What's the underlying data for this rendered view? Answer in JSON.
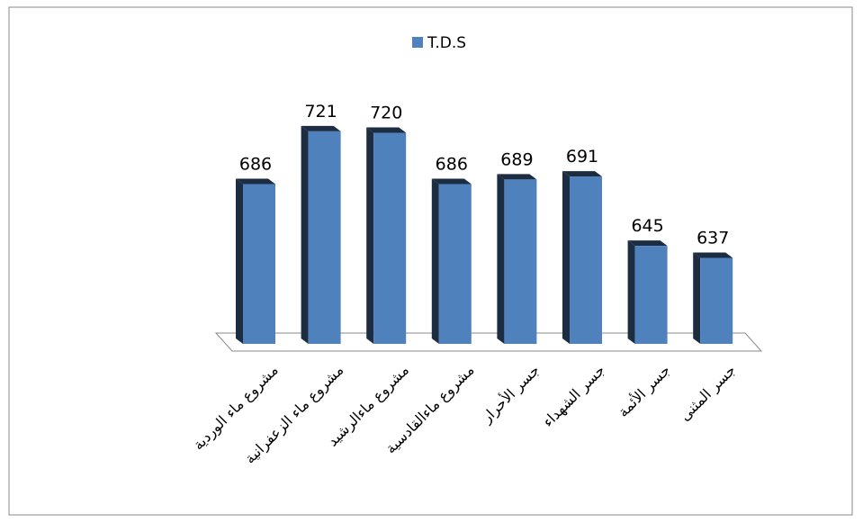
{
  "chart_data": {
    "type": "bar3d",
    "categories": [
      "مشروع ماء الوردية",
      "مشروع ماء الزعفرانية",
      "مشروع ماءالرشيد",
      "مشروع ماءالقادسية",
      "جسر الأحرار",
      "جسر الشهداء",
      "جسر الأئمة",
      "جسر المثنى"
    ],
    "series": [
      {
        "name": "T.D.S",
        "color": "#4f81bd",
        "values": [
          686,
          721,
          720,
          686,
          689,
          691,
          645,
          637
        ]
      }
    ],
    "ylim": [
      580,
      740
    ],
    "legend": "top"
  }
}
